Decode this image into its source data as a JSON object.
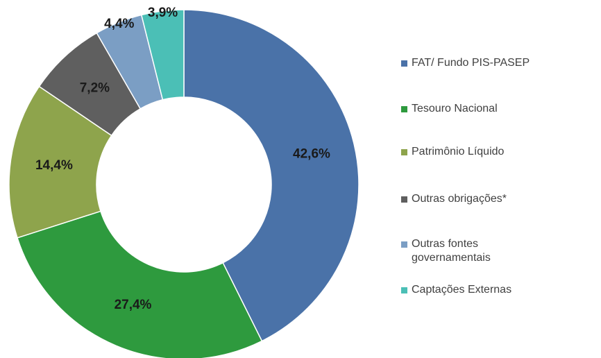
{
  "chart_data": {
    "type": "donut",
    "categories": [
      "FAT/ Fundo PIS-PASEP",
      "Tesouro Nacional",
      "Patrimônio Líquido",
      "Outras obrigações*",
      "Outras fontes governamentais",
      "Captações Externas"
    ],
    "values": [
      42.6,
      27.4,
      14.4,
      7.2,
      4.4,
      3.9
    ],
    "value_labels": [
      "42,6%",
      "27,4%",
      "14,4%",
      "7,2%",
      "4,4%",
      "3,9%"
    ],
    "colors": [
      "#4a72a8",
      "#2e9a3e",
      "#8ea44c",
      "#5f5f5f",
      "#7b9ec4",
      "#4bbfb6"
    ],
    "legend": "right"
  }
}
